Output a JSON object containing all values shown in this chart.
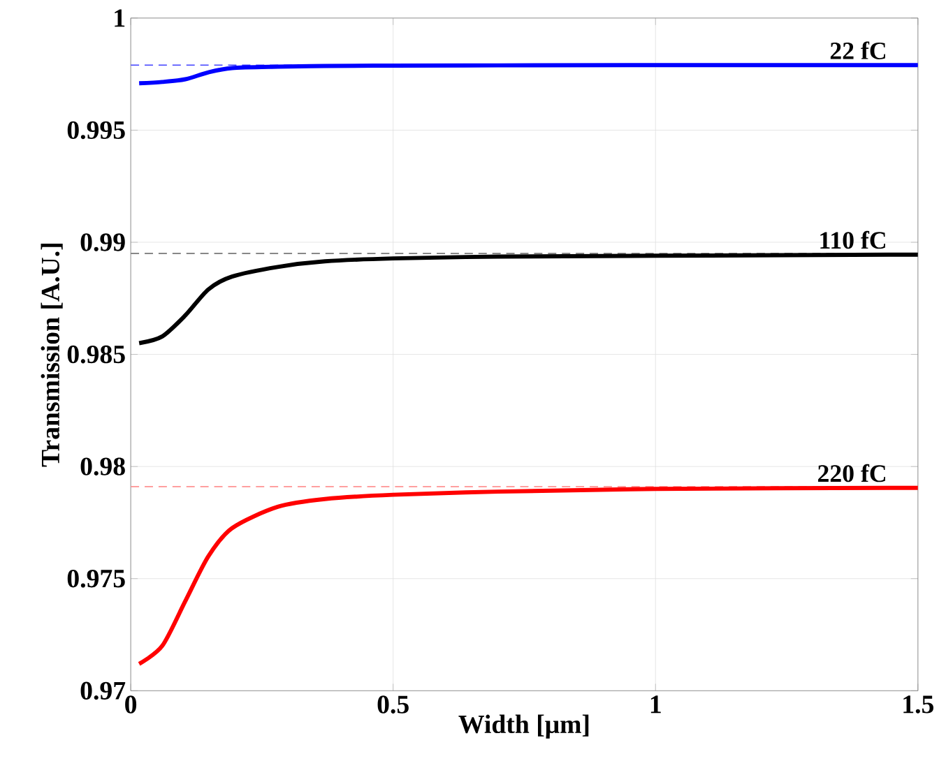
{
  "chart_data": {
    "type": "line",
    "xlabel": "Width [μm]",
    "ylabel": "Transmission [A.U.]",
    "xlim": [
      0,
      1.5
    ],
    "xticks": [
      0,
      0.5,
      1,
      1.5
    ],
    "ylim": [
      0.97,
      1
    ],
    "yticks": [
      0.97,
      0.975,
      0.98,
      0.985,
      0.99,
      0.995,
      1
    ],
    "grid": true,
    "line_style": "solid",
    "marker": "none",
    "x": [
      0.016,
      0.06,
      0.104,
      0.148,
      0.193,
      0.28,
      0.37,
      0.5,
      0.7,
      1,
      1.5
    ],
    "series": [
      {
        "name": "22 fC",
        "color": "#0000ff",
        "values": [
          0.99709,
          0.99715,
          0.99727,
          0.99758,
          0.99777,
          0.99783,
          0.99786,
          0.99788,
          0.99789,
          0.9979,
          0.9979
        ]
      },
      {
        "name": "110 fC",
        "color": "#000000",
        "values": [
          0.9855,
          0.9858,
          0.98674,
          0.9879,
          0.98847,
          0.9889,
          0.98915,
          0.98928,
          0.98936,
          0.9894,
          0.98945
        ]
      },
      {
        "name": "220 fC",
        "color": "#ff0000",
        "values": [
          0.9712,
          0.972,
          0.974,
          0.976,
          0.97725,
          0.9782,
          0.97855,
          0.97874,
          0.97888,
          0.979,
          0.97905
        ]
      }
    ],
    "ref_lines": [
      {
        "axis": "y",
        "value": 0.9979,
        "color": "#4040ff",
        "line_style": "dashed"
      },
      {
        "axis": "y",
        "value": 0.9895,
        "color": "#606060",
        "line_style": "dashed"
      },
      {
        "axis": "y",
        "value": 0.9791,
        "color": "#ff8080",
        "line_style": "dashed"
      }
    ]
  }
}
